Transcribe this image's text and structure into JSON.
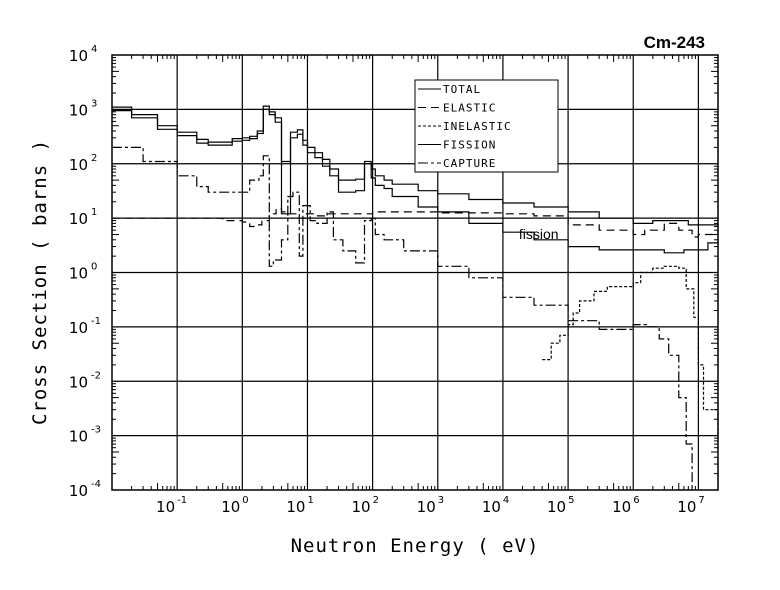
{
  "chart_data": {
    "type": "line",
    "title": "Cm-243",
    "xlabel": "Neutron Energy ( eV)",
    "ylabel": "Cross Section ( barns )",
    "xscale": "log",
    "yscale": "log",
    "xlim": [
      0.01,
      20000000
    ],
    "ylim": [
      0.0001,
      10000
    ],
    "grid": true,
    "legend_position": "top-right",
    "x_ticks": [
      {
        "base": "10",
        "exp": "-1",
        "value": 0.1
      },
      {
        "base": "10",
        "exp": "0",
        "value": 1
      },
      {
        "base": "10",
        "exp": "1",
        "value": 10
      },
      {
        "base": "10",
        "exp": "2",
        "value": 100
      },
      {
        "base": "10",
        "exp": "3",
        "value": 1000
      },
      {
        "base": "10",
        "exp": "4",
        "value": 10000
      },
      {
        "base": "10",
        "exp": "5",
        "value": 100000
      },
      {
        "base": "10",
        "exp": "6",
        "value": 1000000
      },
      {
        "base": "10",
        "exp": "7",
        "value": 10000000
      }
    ],
    "y_ticks": [
      {
        "base": "10",
        "exp": "4",
        "value": 10000
      },
      {
        "base": "10",
        "exp": "3",
        "value": 1000
      },
      {
        "base": "10",
        "exp": "2",
        "value": 100
      },
      {
        "base": "10",
        "exp": "1",
        "value": 10
      },
      {
        "base": "10",
        "exp": "0",
        "value": 1
      },
      {
        "base": "10",
        "exp": "-1",
        "value": 0.1
      },
      {
        "base": "10",
        "exp": "-2",
        "value": 0.01
      },
      {
        "base": "10",
        "exp": "-3",
        "value": 0.001
      },
      {
        "base": "10",
        "exp": "-4",
        "value": 0.0001
      }
    ],
    "annotations": [
      {
        "text": "fission",
        "x": 25000,
        "y": 4.5
      }
    ],
    "series": [
      {
        "name": "TOTAL",
        "dash": "",
        "points": [
          [
            0.01,
            1100
          ],
          [
            0.02,
            800
          ],
          [
            0.05,
            500
          ],
          [
            0.1,
            380
          ],
          [
            0.2,
            280
          ],
          [
            0.3,
            250
          ],
          [
            0.5,
            250
          ],
          [
            0.7,
            290
          ],
          [
            1,
            300
          ],
          [
            1.3,
            320
          ],
          [
            1.7,
            400
          ],
          [
            2.1,
            1150
          ],
          [
            2.6,
            900
          ],
          [
            3.2,
            700
          ],
          [
            4,
            110
          ],
          [
            5.5,
            380
          ],
          [
            7,
            420
          ],
          [
            8.5,
            270
          ],
          [
            10,
            200
          ],
          [
            13,
            160
          ],
          [
            17,
            120
          ],
          [
            22,
            80
          ],
          [
            30,
            50
          ],
          [
            55,
            52
          ],
          [
            75,
            110
          ],
          [
            95,
            80
          ],
          [
            110,
            60
          ],
          [
            150,
            50
          ],
          [
            200,
            42
          ],
          [
            500,
            32
          ],
          [
            1000,
            28
          ],
          [
            3000,
            22
          ],
          [
            10000,
            19
          ],
          [
            30000,
            16
          ],
          [
            100000,
            13
          ],
          [
            300000,
            10
          ],
          [
            1000000,
            8
          ],
          [
            2000000,
            9
          ],
          [
            4000000,
            9
          ],
          [
            7000000,
            7.5
          ],
          [
            10000000,
            7.5
          ],
          [
            20000000,
            8
          ]
        ]
      },
      {
        "name": "ELASTIC",
        "dash": "8,5",
        "points": [
          [
            0.01,
            10
          ],
          [
            0.1,
            10
          ],
          [
            0.5,
            9
          ],
          [
            1,
            8.5
          ],
          [
            1.3,
            7
          ],
          [
            1.6,
            7.5
          ],
          [
            2,
            9
          ],
          [
            2.6,
            12
          ],
          [
            3.3,
            15
          ],
          [
            4,
            13
          ],
          [
            5.5,
            12
          ],
          [
            7,
            10
          ],
          [
            9,
            12
          ],
          [
            13,
            11
          ],
          [
            20,
            12
          ],
          [
            40,
            12
          ],
          [
            70,
            12
          ],
          [
            100,
            13
          ],
          [
            1000,
            12.5
          ],
          [
            10000,
            12
          ],
          [
            30000,
            11
          ],
          [
            100000,
            7.5
          ],
          [
            300000,
            6
          ],
          [
            1000000,
            5
          ],
          [
            1500000,
            6
          ],
          [
            3000000,
            8
          ],
          [
            5000000,
            6
          ],
          [
            8000000,
            4.5
          ],
          [
            10000000,
            5
          ],
          [
            20000000,
            6
          ]
        ]
      },
      {
        "name": "INELASTIC",
        "dash": "3,2",
        "points": [
          [
            40000,
            0.025
          ],
          [
            55000,
            0.05
          ],
          [
            75000,
            0.07
          ],
          [
            100000,
            0.11
          ],
          [
            120000,
            0.18
          ],
          [
            150000,
            0.3
          ],
          [
            250000,
            0.45
          ],
          [
            400000,
            0.55
          ],
          [
            1000000,
            0.65
          ],
          [
            1300000,
            1.0
          ],
          [
            2000000,
            1.2
          ],
          [
            3000000,
            1.3
          ],
          [
            5000000,
            1.2
          ],
          [
            6500000,
            0.5
          ],
          [
            8500000,
            0.15
          ],
          [
            10000000,
            0.02
          ],
          [
            12000000,
            0.003
          ],
          [
            20000000,
            0.001
          ]
        ]
      },
      {
        "name": "FISSION",
        "dash": "",
        "points": [
          [
            0.01,
            950
          ],
          [
            0.02,
            700
          ],
          [
            0.05,
            430
          ],
          [
            0.1,
            330
          ],
          [
            0.2,
            240
          ],
          [
            0.3,
            220
          ],
          [
            0.5,
            220
          ],
          [
            0.7,
            260
          ],
          [
            1,
            270
          ],
          [
            1.3,
            290
          ],
          [
            1.7,
            360
          ],
          [
            2.1,
            1000
          ],
          [
            2.6,
            800
          ],
          [
            3.2,
            580
          ],
          [
            4,
            12
          ],
          [
            5.5,
            300
          ],
          [
            7,
            350
          ],
          [
            8.5,
            220
          ],
          [
            10,
            160
          ],
          [
            13,
            130
          ],
          [
            17,
            90
          ],
          [
            22,
            60
          ],
          [
            30,
            30
          ],
          [
            55,
            32
          ],
          [
            75,
            100
          ],
          [
            95,
            55
          ],
          [
            110,
            40
          ],
          [
            150,
            35
          ],
          [
            200,
            25
          ],
          [
            500,
            16
          ],
          [
            1000,
            13
          ],
          [
            3000,
            8
          ],
          [
            10000,
            5.5
          ],
          [
            30000,
            4
          ],
          [
            100000,
            3
          ],
          [
            300000,
            2.6
          ],
          [
            1000000,
            2.6
          ],
          [
            3000000,
            2.3
          ],
          [
            6000000,
            2.6
          ],
          [
            10000000,
            2.6
          ],
          [
            14000000,
            3.5
          ],
          [
            20000000,
            3.7
          ]
        ]
      },
      {
        "name": "CAPTURE",
        "dash": "10,3,3,3",
        "points": [
          [
            0.01,
            200
          ],
          [
            0.03,
            110
          ],
          [
            0.1,
            60
          ],
          [
            0.2,
            38
          ],
          [
            0.3,
            30
          ],
          [
            0.5,
            30
          ],
          [
            1,
            30
          ],
          [
            1.3,
            50
          ],
          [
            1.8,
            60
          ],
          [
            2.1,
            140
          ],
          [
            2.6,
            1.3
          ],
          [
            3,
            1.7
          ],
          [
            4,
            4
          ],
          [
            5,
            25
          ],
          [
            6,
            30
          ],
          [
            7.5,
            2
          ],
          [
            8.5,
            17
          ],
          [
            11,
            9
          ],
          [
            14,
            8
          ],
          [
            20,
            13
          ],
          [
            25,
            4
          ],
          [
            35,
            2.5
          ],
          [
            55,
            1.5
          ],
          [
            75,
            9
          ],
          [
            95,
            10
          ],
          [
            110,
            5
          ],
          [
            150,
            4
          ],
          [
            300,
            2.5
          ],
          [
            1000,
            1.3
          ],
          [
            3000,
            0.8
          ],
          [
            10000,
            0.35
          ],
          [
            30000,
            0.25
          ],
          [
            100000,
            0.13
          ],
          [
            300000,
            0.09
          ],
          [
            1000000,
            0.11
          ],
          [
            1600000,
            0.1
          ],
          [
            2500000,
            0.06
          ],
          [
            3500000,
            0.03
          ],
          [
            5000000,
            0.005
          ],
          [
            6500000,
            0.0007
          ],
          [
            8000000,
            0.0001
          ]
        ]
      }
    ]
  }
}
